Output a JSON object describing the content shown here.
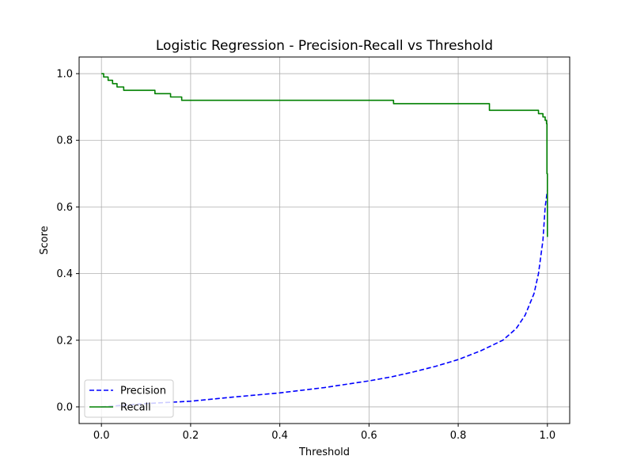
{
  "chart_data": {
    "type": "line",
    "title": "Logistic Regression - Precision-Recall vs Threshold",
    "xlabel": "Threshold",
    "ylabel": "Score",
    "xlim": [
      -0.05,
      1.05
    ],
    "ylim": [
      -0.05,
      1.05
    ],
    "xticks": [
      0.0,
      0.2,
      0.4,
      0.6,
      0.8,
      1.0
    ],
    "xtick_labels": [
      "0.0",
      "0.2",
      "0.4",
      "0.6",
      "0.8",
      "1.0"
    ],
    "yticks": [
      0.0,
      0.2,
      0.4,
      0.6,
      0.8,
      1.0
    ],
    "ytick_labels": [
      "0.0",
      "0.2",
      "0.4",
      "0.6",
      "0.8",
      "1.0"
    ],
    "grid": true,
    "legend_position": "lower-left",
    "series": [
      {
        "name": "Precision",
        "color": "#0000ff",
        "style": "dashed",
        "x": [
          0.0,
          0.05,
          0.1,
          0.2,
          0.3,
          0.4,
          0.5,
          0.6,
          0.65,
          0.7,
          0.75,
          0.8,
          0.85,
          0.9,
          0.93,
          0.95,
          0.97,
          0.98,
          0.99,
          0.995,
          1.0
        ],
        "y": [
          0.0,
          0.005,
          0.01,
          0.017,
          0.03,
          0.042,
          0.058,
          0.078,
          0.09,
          0.105,
          0.122,
          0.142,
          0.168,
          0.2,
          0.235,
          0.275,
          0.34,
          0.4,
          0.5,
          0.6,
          0.65
        ]
      },
      {
        "name": "Recall",
        "color": "#008000",
        "style": "solid",
        "x": [
          0.0,
          0.005,
          0.015,
          0.025,
          0.035,
          0.05,
          0.12,
          0.155,
          0.18,
          0.6,
          0.655,
          0.87,
          0.98,
          0.99,
          0.995,
          0.998,
          0.999,
          1.0
        ],
        "y": [
          1.0,
          0.99,
          0.98,
          0.97,
          0.96,
          0.95,
          0.94,
          0.93,
          0.92,
          0.92,
          0.91,
          0.89,
          0.88,
          0.87,
          0.86,
          0.85,
          0.7,
          0.51
        ]
      }
    ]
  }
}
